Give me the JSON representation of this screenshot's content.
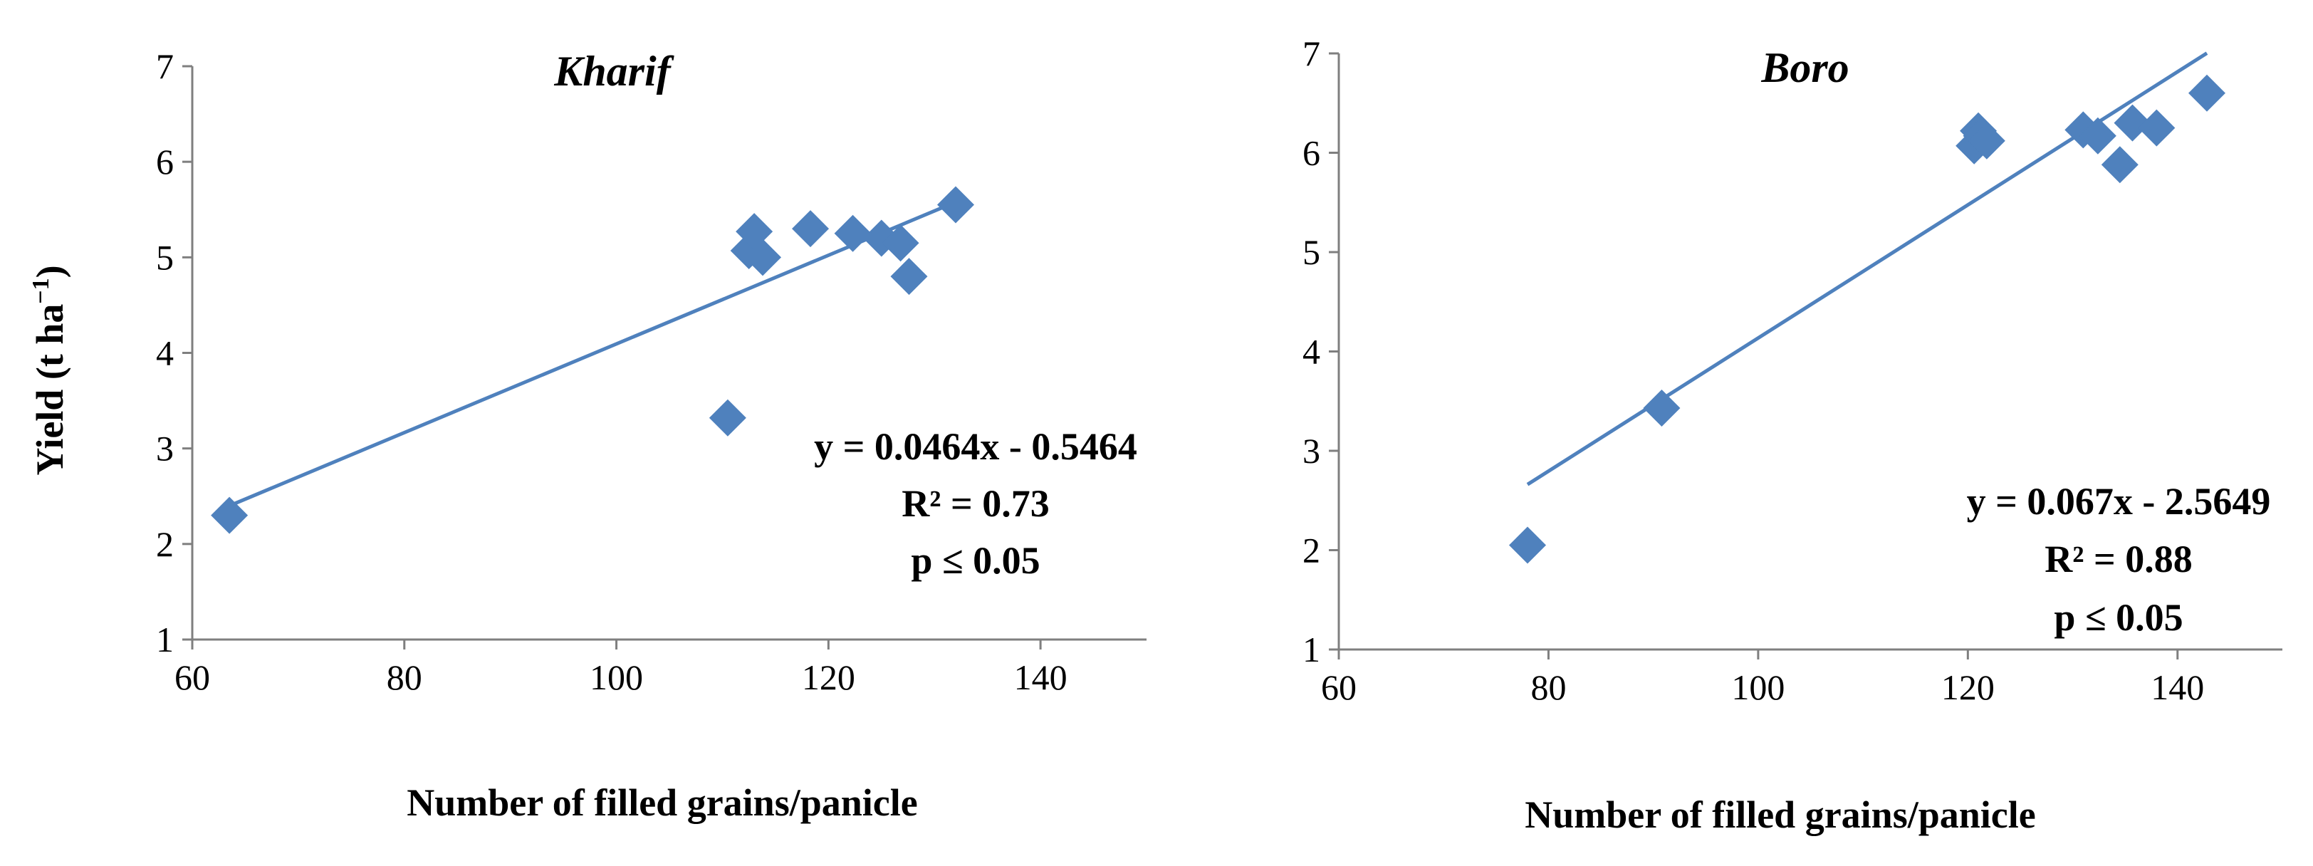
{
  "colors": {
    "marker": "#4f81bd",
    "trend": "#4f81bd",
    "axis": "#7f7f7f"
  },
  "y_axis_title": "Yield (t ha",
  "y_axis_title_sup": "−1",
  "y_axis_title_close": ")",
  "chart_data": [
    {
      "type": "scatter",
      "title": "Kharif",
      "xlabel": "Number of filled grains/panicle",
      "ylabel": "Yield (t ha−1)",
      "xlim": [
        60,
        150
      ],
      "ylim": [
        1,
        7
      ],
      "x_ticks": [
        60,
        80,
        100,
        120,
        140
      ],
      "y_ticks": [
        1,
        2,
        3,
        4,
        5,
        6,
        7
      ],
      "x_tick_labels": [
        "60",
        "80",
        "100",
        "120",
        "140"
      ],
      "y_tick_labels": [
        "1",
        "2",
        "3",
        "4",
        "5",
        "6",
        "7"
      ],
      "grid": false,
      "points": [
        {
          "x": 63.5,
          "y": 2.3
        },
        {
          "x": 110.5,
          "y": 3.32
        },
        {
          "x": 112.5,
          "y": 5.07
        },
        {
          "x": 113.0,
          "y": 5.27
        },
        {
          "x": 113.8,
          "y": 5.0
        },
        {
          "x": 118.3,
          "y": 5.3
        },
        {
          "x": 122.3,
          "y": 5.25
        },
        {
          "x": 125.0,
          "y": 5.2
        },
        {
          "x": 126.8,
          "y": 5.15
        },
        {
          "x": 127.6,
          "y": 4.8
        },
        {
          "x": 132.0,
          "y": 5.55
        }
      ],
      "trendline": {
        "slope": 0.0464,
        "intercept": -0.5464,
        "x_range": [
          63.5,
          132.0
        ]
      },
      "annotations": [
        "y = 0.0464x - 0.5464",
        "R² = 0.73",
        "p ≤ 0.05"
      ]
    },
    {
      "type": "scatter",
      "title": "Boro",
      "xlabel": "Number of filled grains/panicle",
      "xlim": [
        60,
        150
      ],
      "ylim": [
        1,
        7
      ],
      "x_ticks": [
        60,
        80,
        100,
        120,
        140
      ],
      "y_ticks": [
        1,
        2,
        3,
        4,
        5,
        6,
        7
      ],
      "x_tick_labels": [
        "60",
        "80",
        "100",
        "120",
        "140"
      ],
      "y_tick_labels": [
        "1",
        "2",
        "3",
        "4",
        "5",
        "6",
        "7"
      ],
      "grid": false,
      "points": [
        {
          "x": 78.0,
          "y": 2.05
        },
        {
          "x": 90.8,
          "y": 3.43
        },
        {
          "x": 120.6,
          "y": 6.07
        },
        {
          "x": 121.0,
          "y": 6.22
        },
        {
          "x": 121.3,
          "y": 6.17
        },
        {
          "x": 121.8,
          "y": 6.12
        },
        {
          "x": 131.0,
          "y": 6.23
        },
        {
          "x": 132.4,
          "y": 6.17
        },
        {
          "x": 134.5,
          "y": 5.88
        },
        {
          "x": 135.7,
          "y": 6.3
        },
        {
          "x": 138.0,
          "y": 6.25
        },
        {
          "x": 142.8,
          "y": 6.6
        }
      ],
      "trendline": {
        "slope": 0.067,
        "intercept": -2.5649,
        "x_range": [
          78.0,
          142.8
        ]
      },
      "annotations": [
        "y = 0.067x - 2.5649",
        "R² = 0.88",
        "p ≤ 0.05"
      ]
    }
  ]
}
